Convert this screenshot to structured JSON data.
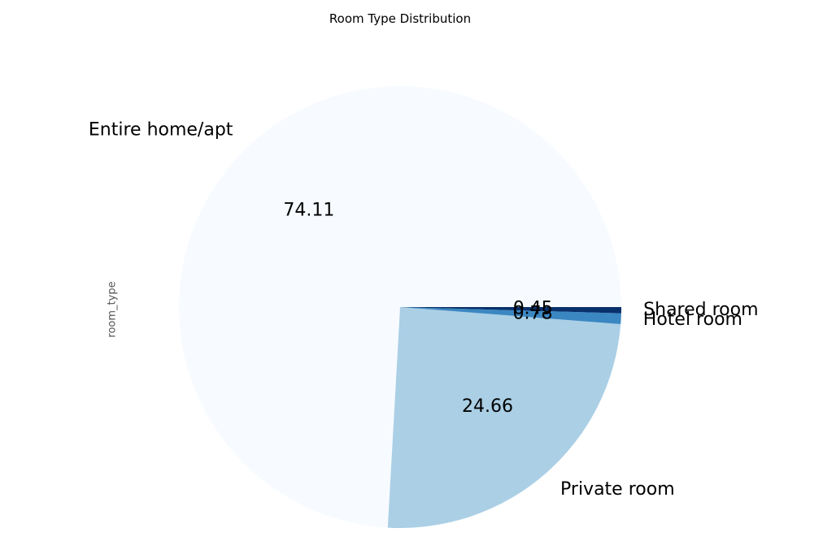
{
  "chart_data": {
    "type": "pie",
    "title": "Room Type Distribution",
    "ylabel": "room_type",
    "categories": [
      "Entire home/apt",
      "Private room",
      "Hotel room",
      "Shared room"
    ],
    "values": [
      74.11,
      24.66,
      0.78,
      0.45
    ],
    "value_labels": [
      "74.11",
      "24.66",
      "0.78",
      "0.45"
    ],
    "colors": [
      "#f7fbff",
      "#abcfe5",
      "#3b87c2",
      "#08306b"
    ],
    "start_angle_deg": 0,
    "direction": "counterclockwise"
  }
}
